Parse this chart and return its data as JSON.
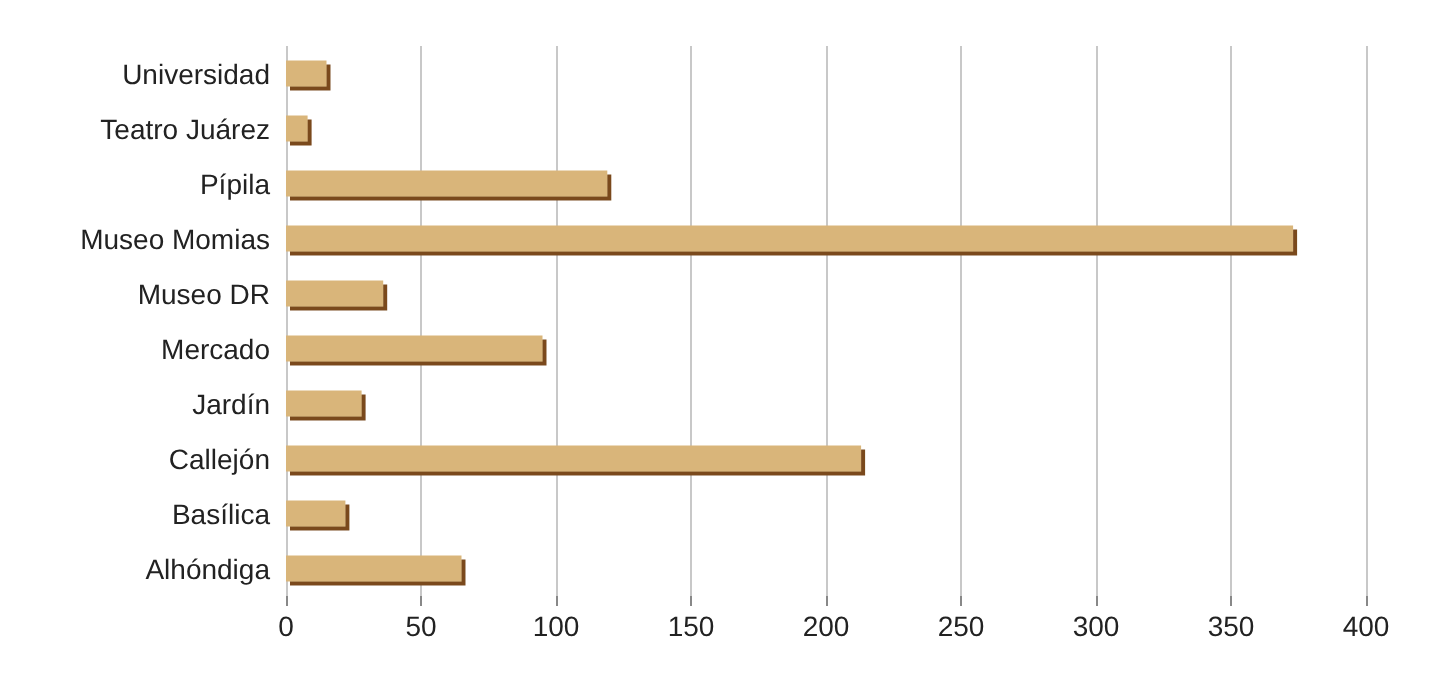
{
  "chart_data": {
    "type": "bar",
    "orientation": "horizontal",
    "categories": [
      "Universidad",
      "Teatro Juárez",
      "Pípila",
      "Museo Momias",
      "Museo DR",
      "Mercado",
      "Jardín",
      "Callejón",
      "Basílica",
      "Alhóndiga"
    ],
    "values": [
      15,
      8,
      119,
      373,
      36,
      95,
      28,
      213,
      22,
      65
    ],
    "color": "#d9b57a",
    "xlim": [
      0,
      400
    ],
    "xticks": [
      0,
      50,
      100,
      150,
      200,
      250,
      300,
      350,
      400
    ],
    "grid": "x"
  }
}
